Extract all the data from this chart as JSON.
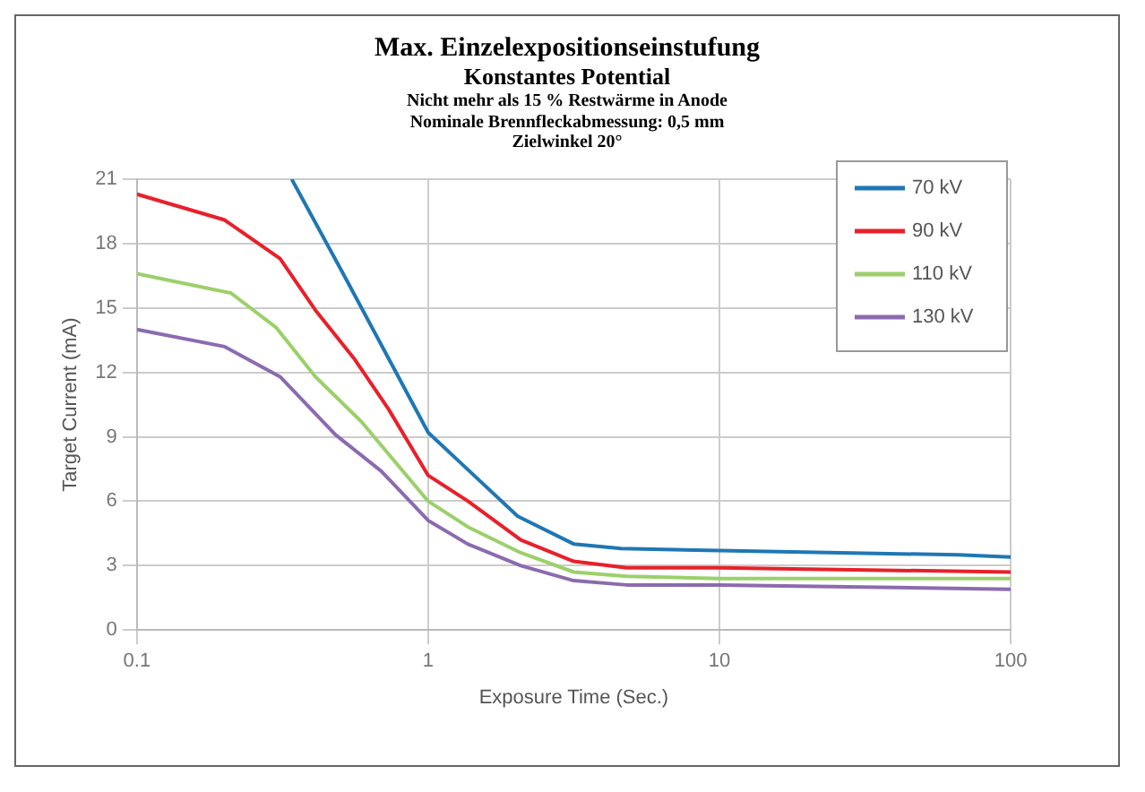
{
  "chart_data": {
    "type": "line",
    "title": "Max. Einzelexpositionseinstufung",
    "subtitle": "Konstantes Potential",
    "annotations": [
      "Nicht mehr als 15 % Restwärme in Anode",
      "Nominale Brennfleckabmessung: 0,5 mm",
      "Zielwinkel 20°"
    ],
    "xlabel": "Exposure Time (Sec.)",
    "ylabel": "Target Current (mA)",
    "log": "x",
    "xlim": [
      0.1,
      100
    ],
    "xticks": [
      0.1,
      1,
      10,
      100
    ],
    "ylim": [
      0,
      21
    ],
    "yticks": [
      0,
      3,
      6,
      9,
      12,
      15,
      18,
      21
    ],
    "grid": true,
    "legend": "top right",
    "marker": "none",
    "line_style": "solid",
    "series": [
      {
        "name": "70 kV",
        "color": "#1f77b4",
        "x": [
          0.34,
          0.52,
          0.79,
          1,
          2.03,
          3.17,
          4.6,
          10,
          66,
          100
        ],
        "values": [
          21,
          16.4,
          11.8,
          9.2,
          5.3,
          4.0,
          3.8,
          3.7,
          3.5,
          3.4
        ]
      },
      {
        "name": "90 kV",
        "color": "#e8202a",
        "x": [
          0.1,
          0.2,
          0.31,
          0.41,
          0.56,
          0.73,
          1,
          1.37,
          2.08,
          3.16,
          4.8,
          10,
          100
        ],
        "values": [
          20.3,
          19.1,
          17.3,
          14.9,
          12.6,
          10.3,
          7.2,
          6.0,
          4.2,
          3.2,
          2.9,
          2.9,
          2.7
        ]
      },
      {
        "name": "110 kV",
        "color": "#9bd06a",
        "x": [
          0.1,
          0.21,
          0.3,
          0.41,
          0.59,
          1,
          1.37,
          2.08,
          3.16,
          4.8,
          10,
          100
        ],
        "values": [
          16.6,
          15.7,
          14.1,
          11.8,
          9.7,
          6.0,
          4.8,
          3.6,
          2.7,
          2.5,
          2.4,
          2.4
        ]
      },
      {
        "name": "130 kV",
        "color": "#8b6bb0",
        "x": [
          0.1,
          0.2,
          0.31,
          0.48,
          0.69,
          1,
          1.37,
          2.08,
          3.16,
          4.8,
          10,
          100
        ],
        "values": [
          14.0,
          13.2,
          11.8,
          9.1,
          7.4,
          5.1,
          4.0,
          3.0,
          2.3,
          2.1,
          2.1,
          1.9
        ]
      }
    ]
  }
}
